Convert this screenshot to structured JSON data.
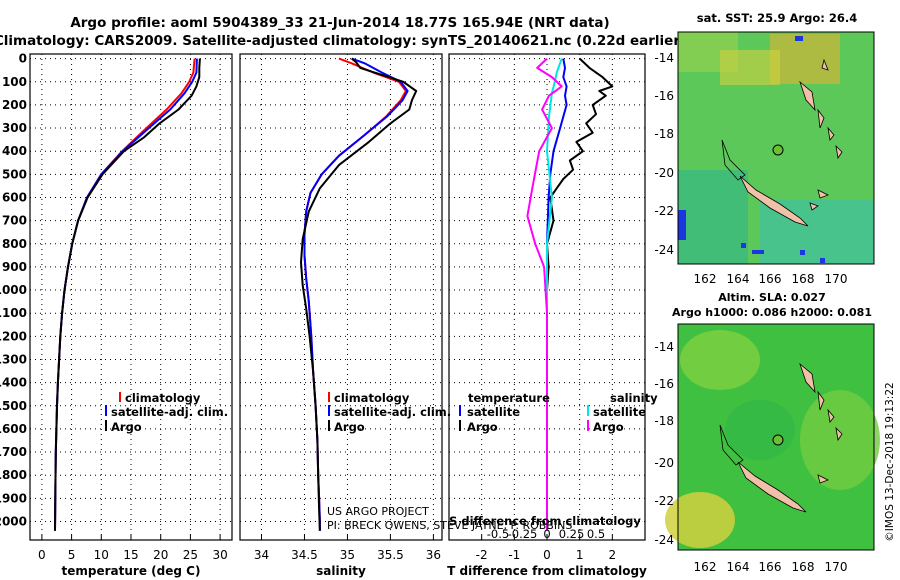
{
  "header": {
    "title_line1": "Argo profile: aoml 5904389_33 21-Jun-2014 18.77S 165.94E (NRT data)",
    "title_line2": "Climatology: CARS2009. Satellite-adjusted climatology: synTS_20140621.nc (0.22d earlier)"
  },
  "colors": {
    "climatology": "#ff0000",
    "satellite": "#0000ff",
    "argo": "#000000",
    "salinity_satellite": "#00e5e5",
    "salinity_argo": "#ff00ff",
    "sst_green": "#5cc85a",
    "land": "#f0c0a8",
    "ocean_blue": "#1c37e0"
  },
  "depth_axis": {
    "ticks": [
      0,
      100,
      200,
      300,
      400,
      500,
      600,
      700,
      800,
      900,
      1000,
      1100,
      1200,
      1300,
      1400,
      1500,
      1600,
      1700,
      1800,
      1900,
      2000
    ]
  },
  "panels": {
    "temperature": {
      "xlabel": "temperature (deg C)",
      "xticks": [
        "0",
        "5",
        "10",
        "15",
        "20",
        "25",
        "30"
      ],
      "xlim": [
        -2,
        32
      ],
      "legend": [
        "climatology",
        "satellite-adj. clim.",
        "Argo"
      ]
    },
    "salinity": {
      "xlabel": "salinity",
      "xticks": [
        "34",
        "34.5",
        "35",
        "35.5",
        "36"
      ],
      "xlim": [
        33.75,
        36.1
      ],
      "legend": [
        "climatology",
        "satellite-adj. clim.",
        "Argo"
      ],
      "credit_line1": "US ARGO PROJECT",
      "credit_line2": "PI: BRECK OWENS, STEVE JAYNE, P. ROBBINS"
    },
    "difference": {
      "xlabel": "T difference from climatology",
      "xticks": [
        "-2",
        "-1",
        "0",
        "1",
        "2"
      ],
      "xlim": [
        -3,
        3
      ],
      "top_label": "S difference from climatology",
      "top_ticks": [
        "-0.5",
        "-0.25",
        "0",
        "0.25",
        "0.5"
      ],
      "legend_temperature_heading": "temperature",
      "legend_salinity_heading": "salinity",
      "legend_temperature": [
        "satellite",
        "Argo"
      ],
      "legend_salinity": [
        "satellite",
        "Argo"
      ]
    }
  },
  "maps": {
    "sst": {
      "title": "sat. SST: 25.9 Argo: 26.4",
      "lon_ticks": [
        "162",
        "164",
        "166",
        "168",
        "170"
      ],
      "lat_ticks": [
        "-14",
        "-16",
        "-18",
        "-20",
        "-22",
        "-24"
      ]
    },
    "sla": {
      "title_line1": "Altim. SLA: 0.027",
      "title_line2": "Argo h1000: 0.086 h2000: 0.081",
      "lon_ticks": [
        "162",
        "164",
        "166",
        "168",
        "170"
      ],
      "lat_ticks": [
        "-14",
        "-16",
        "-18",
        "-20",
        "-22",
        "-24"
      ]
    },
    "float_position": {
      "lon": 165.94,
      "lat": -18.77
    }
  },
  "credit": "©IMOS 13-Dec-2018 19:13:22",
  "chart_data": [
    {
      "type": "line",
      "title": "Temperature profile",
      "xlabel": "temperature (deg C)",
      "ylabel": "depth",
      "xlim": [
        -2,
        32
      ],
      "ylim": [
        2080,
        -20
      ],
      "series": [
        {
          "name": "climatology",
          "x": [
            25.7,
            25.5,
            24.8,
            23.5,
            21.0,
            17.6,
            13.5,
            10.0,
            7.6,
            6.1,
            5.1,
            4.4,
            3.8,
            3.4,
            3.1,
            2.9,
            2.7,
            2.55,
            2.45,
            2.35,
            2.28,
            2.2
          ],
          "depth": [
            0,
            60,
            100,
            150,
            220,
            300,
            400,
            500,
            600,
            700,
            800,
            900,
            1000,
            1100,
            1200,
            1300,
            1400,
            1500,
            1600,
            1700,
            1850,
            2040
          ]
        },
        {
          "name": "satellite-adj. clim.",
          "x": [
            26.1,
            26.0,
            25.3,
            24.0,
            21.6,
            18.0,
            13.6,
            10.0,
            7.6,
            6.1,
            5.1,
            4.4,
            3.8,
            3.4,
            3.1,
            2.9,
            2.7,
            2.55,
            2.45,
            2.35,
            2.28,
            2.2
          ],
          "depth": [
            0,
            60,
            100,
            150,
            220,
            300,
            400,
            500,
            600,
            700,
            800,
            900,
            1000,
            1100,
            1200,
            1300,
            1400,
            1500,
            1600,
            1700,
            1850,
            2040
          ]
        },
        {
          "name": "Argo",
          "x": [
            26.6,
            26.5,
            26.5,
            26.0,
            25.2,
            23.0,
            19.8,
            17.2,
            13.8,
            10.2,
            7.7,
            6.1,
            5.1,
            4.4,
            3.8,
            3.4,
            3.1,
            2.9,
            2.7,
            2.55,
            2.45,
            2.35,
            2.28,
            2.2
          ],
          "depth": [
            0,
            40,
            80,
            120,
            160,
            220,
            280,
            340,
            400,
            500,
            600,
            700,
            800,
            900,
            1000,
            1100,
            1200,
            1300,
            1400,
            1500,
            1600,
            1700,
            1850,
            2040
          ]
        }
      ]
    },
    {
      "type": "line",
      "title": "Salinity profile",
      "xlabel": "salinity",
      "ylabel": "depth",
      "xlim": [
        33.75,
        36.1
      ],
      "ylim": [
        2080,
        -20
      ],
      "series": [
        {
          "name": "climatology",
          "x": [
            34.9,
            35.05,
            35.3,
            35.6,
            35.68,
            35.62,
            35.45,
            35.2,
            34.9,
            34.7,
            34.57,
            34.52,
            34.5,
            34.5,
            34.52,
            34.55,
            34.58,
            34.6,
            34.63,
            34.65,
            34.66,
            34.67,
            34.68,
            34.68
          ],
          "depth": [
            0,
            20,
            60,
            100,
            140,
            180,
            250,
            330,
            420,
            500,
            580,
            660,
            760,
            850,
            950,
            1050,
            1200,
            1350,
            1500,
            1650,
            1800,
            1900,
            2000,
            2040
          ]
        },
        {
          "name": "satellite-adj. clim.",
          "x": [
            35.05,
            35.2,
            35.4,
            35.62,
            35.7,
            35.64,
            35.46,
            35.2,
            34.9,
            34.7,
            34.57,
            34.52,
            34.5,
            34.5,
            34.52,
            34.55,
            34.58,
            34.6,
            34.63,
            34.65,
            34.66,
            34.67,
            34.68,
            34.68
          ],
          "depth": [
            0,
            20,
            60,
            100,
            140,
            180,
            250,
            330,
            420,
            500,
            580,
            660,
            760,
            850,
            950,
            1050,
            1200,
            1350,
            1500,
            1650,
            1800,
            1900,
            2000,
            2040
          ]
        },
        {
          "name": "Argo",
          "x": [
            35.05,
            35.1,
            35.15,
            35.65,
            35.8,
            35.75,
            35.72,
            35.5,
            35.25,
            34.9,
            34.68,
            34.55,
            34.48,
            34.46,
            34.48,
            34.52,
            34.56,
            34.6,
            34.63,
            34.65,
            34.66,
            34.67,
            34.68
          ],
          "depth": [
            0,
            15,
            40,
            100,
            140,
            180,
            220,
            280,
            360,
            460,
            560,
            660,
            780,
            880,
            980,
            1080,
            1200,
            1350,
            1500,
            1650,
            1800,
            1950,
            2040
          ]
        }
      ]
    },
    {
      "type": "line",
      "title": "Difference from climatology",
      "xlabel": "T difference from climatology",
      "ylabel": "depth",
      "xlim": [
        -3,
        3
      ],
      "ylim": [
        2080,
        -20
      ],
      "series": [
        {
          "name": "temperature satellite",
          "x": [
            0.5,
            0.55,
            0.5,
            0.6,
            0.55,
            0.6,
            0.4,
            0.2,
            0.1,
            0.05,
            0,
            0,
            0,
            0,
            0
          ],
          "depth": [
            0,
            40,
            80,
            120,
            160,
            200,
            300,
            400,
            500,
            600,
            800,
            1000,
            1400,
            1800,
            2040
          ]
        },
        {
          "name": "temperature Argo",
          "x": [
            1.0,
            1.3,
            1.7,
            2.0,
            1.6,
            1.8,
            1.4,
            1.5,
            1.2,
            1.4,
            0.9,
            1.1,
            0.7,
            0.8,
            0.5,
            0.3,
            0.1,
            0.2,
            0,
            0.05,
            0,
            0,
            0,
            0
          ],
          "depth": [
            0,
            40,
            80,
            120,
            140,
            160,
            200,
            240,
            280,
            320,
            360,
            400,
            440,
            480,
            520,
            560,
            600,
            700,
            800,
            900,
            1000,
            1300,
            1700,
            2040
          ]
        },
        {
          "name": "salinity satellite",
          "x": [
            0.15,
            0.1,
            0.08,
            0.05,
            0.02,
            0,
            0.05,
            0,
            0,
            0
          ],
          "depth": [
            0,
            60,
            100,
            150,
            250,
            400,
            600,
            800,
            1400,
            2040
          ]
        },
        {
          "name": "salinity Argo",
          "x": [
            0,
            -0.1,
            0.05,
            0.15,
            0.02,
            -0.05,
            0.05,
            -0.08,
            -0.15,
            -0.2,
            -0.12,
            -0.03,
            0,
            0,
            0
          ],
          "depth": [
            0,
            40,
            80,
            120,
            160,
            220,
            300,
            400,
            560,
            680,
            800,
            900,
            1100,
            1500,
            2040
          ]
        }
      ]
    }
  ]
}
